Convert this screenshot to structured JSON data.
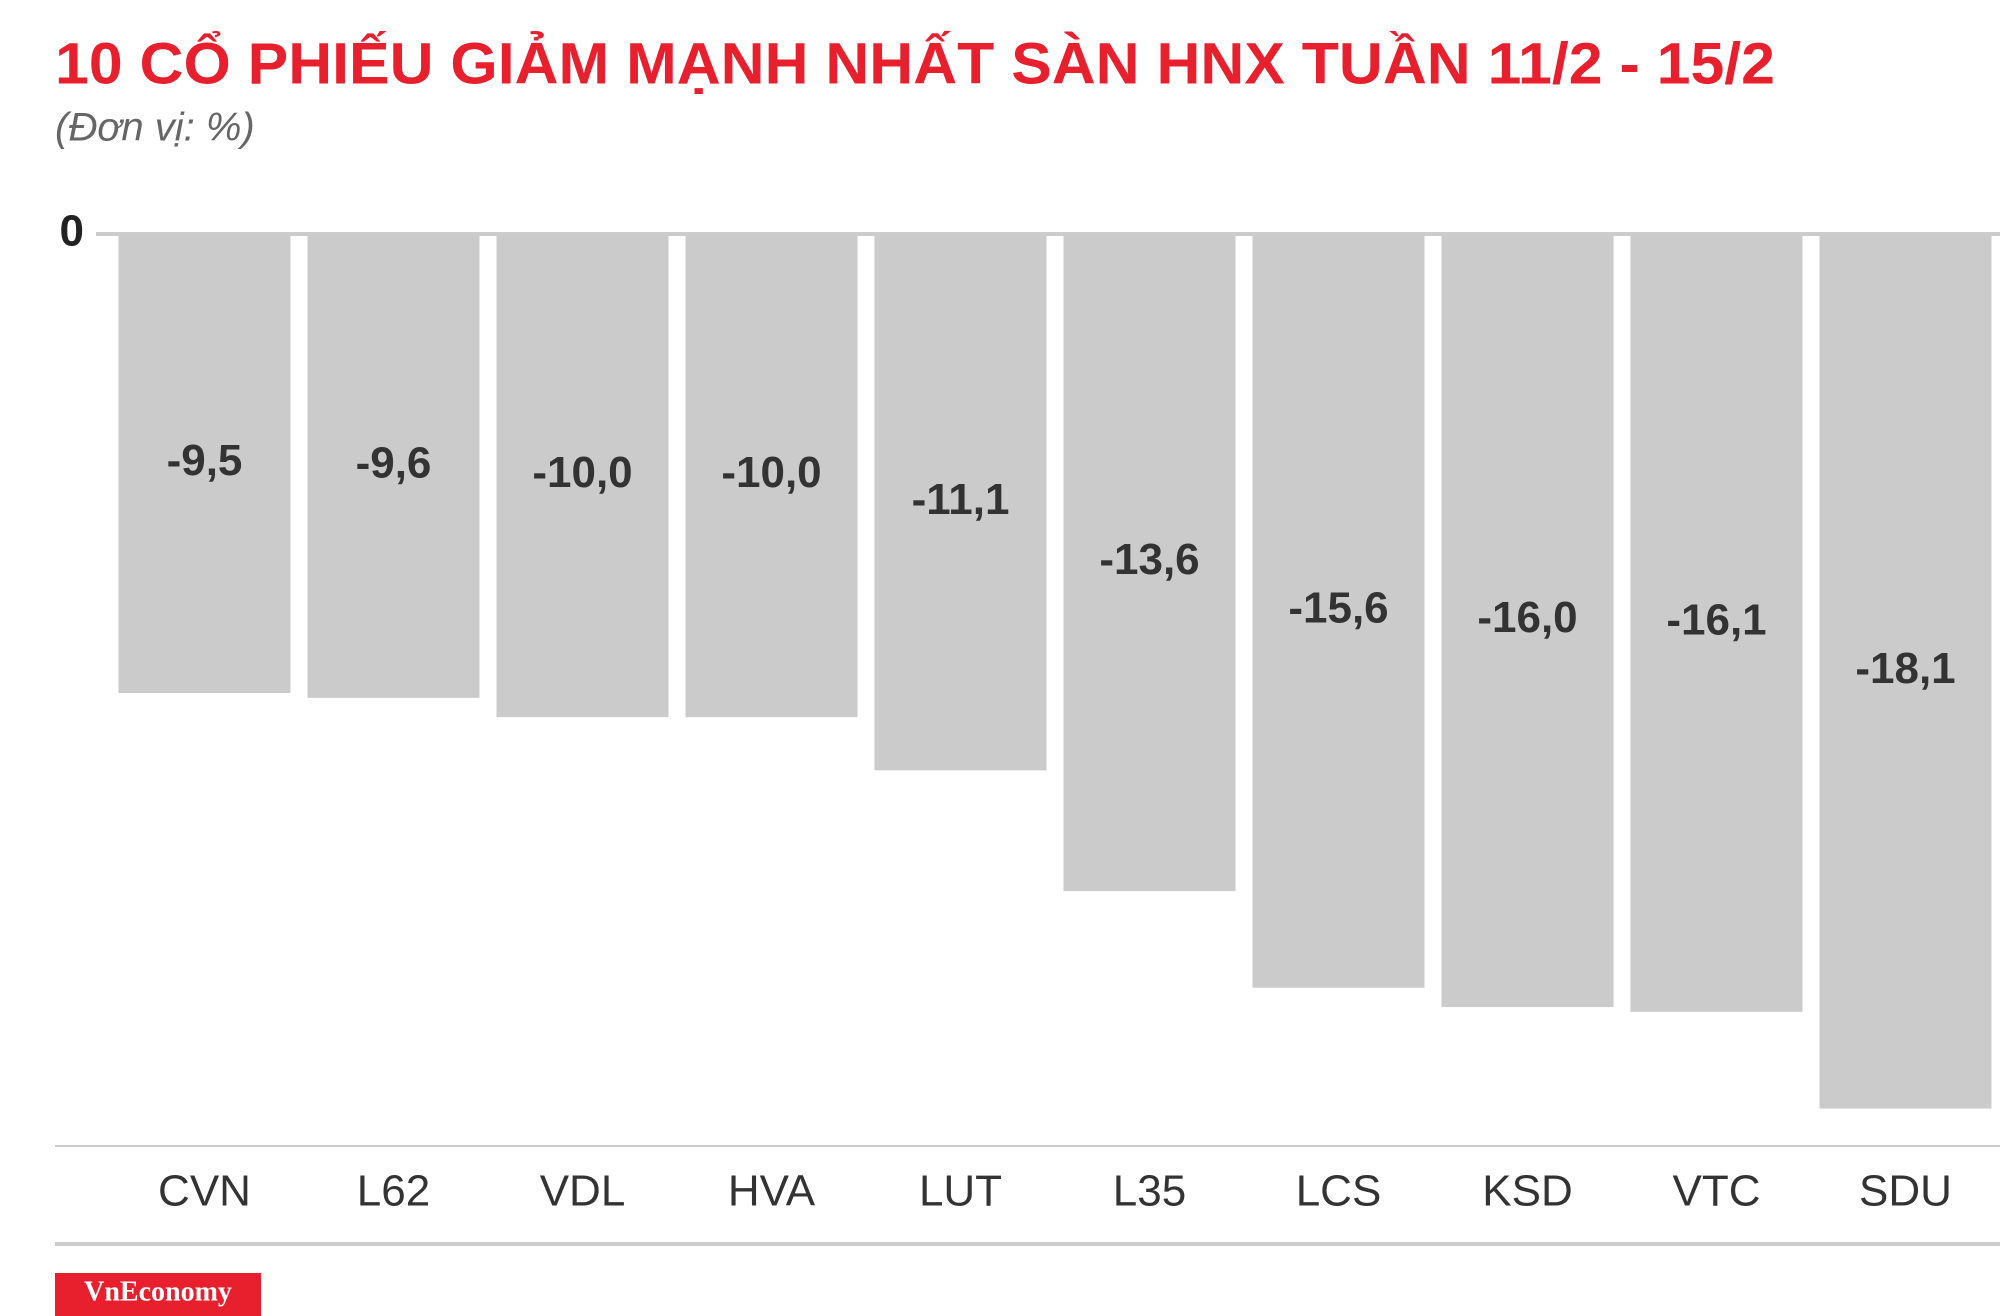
{
  "chart_data": {
    "type": "bar",
    "title": "10 CỔ PHIẾU GIẢM MẠNH NHẤT SÀN HNX TUẦN 11/2 - 15/2",
    "subtitle": "(Đơn vị: %)",
    "categories": [
      "CVN",
      "L62",
      "VDL",
      "HVA",
      "LUT",
      "L35",
      "LCS",
      "KSD",
      "VTC",
      "SDU"
    ],
    "values": [
      -9.5,
      -9.6,
      -10.0,
      -10.0,
      -11.1,
      -13.6,
      -15.6,
      -16.0,
      -16.1,
      -18.1
    ],
    "value_labels": [
      "-9,5",
      "-9,6",
      "-10,0",
      "-10,0",
      "-11,1",
      "-13,6",
      "-15,6",
      "-16,0",
      "-16,1",
      "-18,1"
    ],
    "color": "#cccbcc",
    "ylim": [
      -19,
      0
    ],
    "yticks": [
      0
    ],
    "grid": true,
    "source": "VnEconomy"
  }
}
